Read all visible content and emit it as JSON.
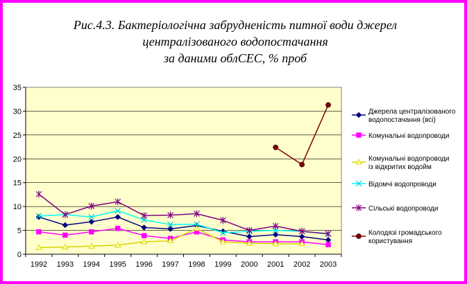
{
  "title_lines": [
    "Рис.4.3. Бактеріологічна забрудненість питної води джерел",
    "централізованого водопостачання",
    "за даними облСЕС, % проб"
  ],
  "colors": {
    "border": "#ff00ff",
    "plot_bg": "#ffffcc"
  },
  "chart_data": {
    "type": "line",
    "categories": [
      "1992",
      "1993",
      "1994",
      "1995",
      "1996",
      "1997",
      "1998",
      "1999",
      "2000",
      "2001",
      "2002",
      "2003"
    ],
    "ylim": [
      0,
      35
    ],
    "yticks": [
      "0",
      "5",
      "10",
      "15",
      "20",
      "25",
      "30",
      "35"
    ],
    "grid": "horizontal",
    "legend_position": "right",
    "series": [
      {
        "name_lines": [
          "Джерела централізованого",
          "водопостачання (всі)"
        ],
        "color": "#000080",
        "marker": "diamond",
        "marker_color": "#000080",
        "values": [
          7.8,
          6.1,
          6.8,
          7.8,
          5.6,
          5.3,
          6.0,
          4.8,
          3.7,
          4.1,
          3.7,
          3.0
        ]
      },
      {
        "name_lines": [
          "Комунальні водопроводи"
        ],
        "color": "#ff00ff",
        "marker": "square",
        "marker_color": "#ff00ff",
        "values": [
          4.7,
          4.0,
          4.7,
          5.4,
          3.9,
          3.3,
          4.7,
          3.0,
          2.6,
          2.6,
          2.6,
          2.0
        ]
      },
      {
        "name_lines": [
          "Комунальні водопроводи",
          "із відкритих водойм"
        ],
        "color": "#d4d400",
        "marker": "triangle",
        "marker_color": "#ffff99",
        "values": [
          1.4,
          1.5,
          1.7,
          1.9,
          2.6,
          2.8,
          5.4,
          2.6,
          2.3,
          2.2,
          2.2,
          null
        ]
      },
      {
        "name_lines": [
          "Відомчі водопроводи"
        ],
        "color": "#00ffff",
        "marker": "x",
        "marker_color": "#00cccc",
        "values": [
          8.0,
          8.3,
          7.8,
          9.1,
          7.2,
          6.2,
          6.3,
          4.5,
          4.8,
          5.0,
          4.8,
          4.2
        ]
      },
      {
        "name_lines": [
          "Сільські водопроводи"
        ],
        "color": "#800080",
        "marker": "star",
        "marker_color": "#800080",
        "values": [
          12.6,
          8.3,
          10.1,
          11.0,
          8.1,
          8.2,
          8.5,
          7.1,
          5.0,
          5.9,
          4.8,
          4.3
        ]
      },
      {
        "name_lines": [
          "Колодязі громадського",
          "користування"
        ],
        "color": "#800000",
        "marker": "circle",
        "marker_color": "#800000",
        "values": [
          null,
          null,
          null,
          null,
          null,
          null,
          null,
          null,
          null,
          22.4,
          18.8,
          31.3
        ]
      }
    ]
  }
}
